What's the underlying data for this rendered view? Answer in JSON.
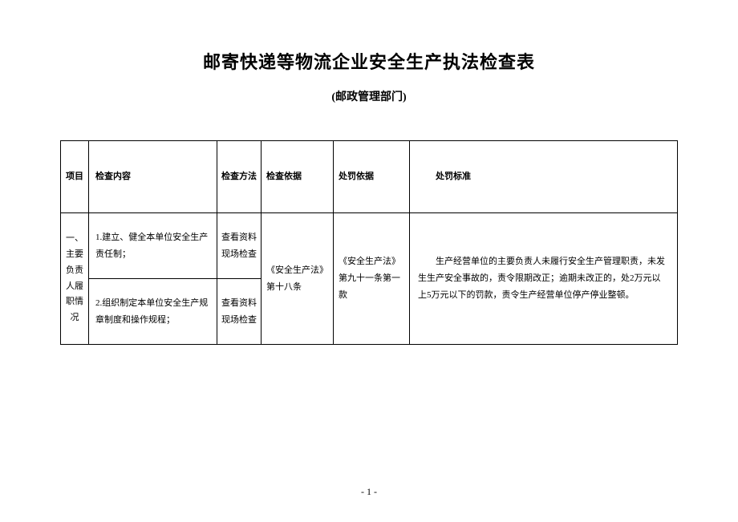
{
  "title": "邮寄快递等物流企业安全生产执法检查表",
  "subtitle": "(邮政管理部门)",
  "headers": {
    "project": "项目",
    "content": "检查内容",
    "method": "检查方法",
    "basis1": "检查依据",
    "basis2": "处罚依据",
    "standard": "处罚标准"
  },
  "rows": {
    "project1": "一、主要负责人履职情况",
    "content1": "1.建立、健全本单位安全生产责任制；",
    "content2": "2.组织制定本单位安全生产规章制度和操作规程；",
    "method1": "查看资料现场检查",
    "method2": "查看资料现场检查",
    "basis1": "《安全生产法》第十八条",
    "basis2": "《安全生产法》第九十一条第一款",
    "standard": "生产经营单位的主要负责人未履行安全生产管理职责，未发生生产安全事故的，责令限期改正；逾期未改正的，处2万元以上5万元以下的罚款，责令生产经营单位停产停业整顿。"
  },
  "pageNumber": "- 1 -"
}
